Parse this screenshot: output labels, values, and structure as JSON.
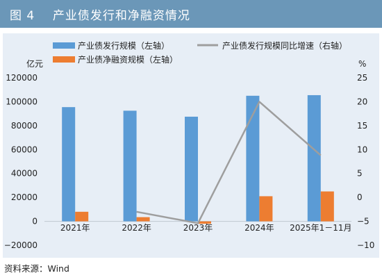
{
  "header": {
    "title": "图 4    产业债发行和净融资情况"
  },
  "footer": {
    "source": "资料来源：Wind"
  },
  "chart_data": {
    "type": "bar",
    "categories": [
      "2021年",
      "2022年",
      "2023年",
      "2024年",
      "2025年1－11月"
    ],
    "left_axis": {
      "unit": "亿元",
      "ylim": [
        -20000,
        120000
      ],
      "ticks": [
        "120000",
        "100000",
        "80000",
        "60000",
        "40000",
        "20000",
        "0",
        "−20000"
      ]
    },
    "right_axis": {
      "unit": "%",
      "ylim": [
        -10,
        25
      ],
      "ticks": [
        "25",
        "20",
        "15",
        "10",
        "5",
        "0",
        "−5",
        "−10"
      ]
    },
    "grid": false,
    "legend_position": "top",
    "series": [
      {
        "name": "产业债发行规模（左轴）",
        "kind": "bar",
        "axis": "left",
        "color": "#5b9bd5",
        "values": [
          95500,
          92500,
          87500,
          105000,
          105500
        ]
      },
      {
        "name": "产业债净融资规模（左轴）",
        "kind": "bar",
        "axis": "left",
        "color": "#ed7d31",
        "values": [
          8000,
          3500,
          -2000,
          21000,
          25000
        ]
      },
      {
        "name": "产业债发行规模同比增速（右轴）",
        "kind": "line",
        "axis": "right",
        "color": "#9e9e9e",
        "values": [
          null,
          -3.0,
          -5.4,
          20.0,
          8.8
        ]
      }
    ]
  }
}
